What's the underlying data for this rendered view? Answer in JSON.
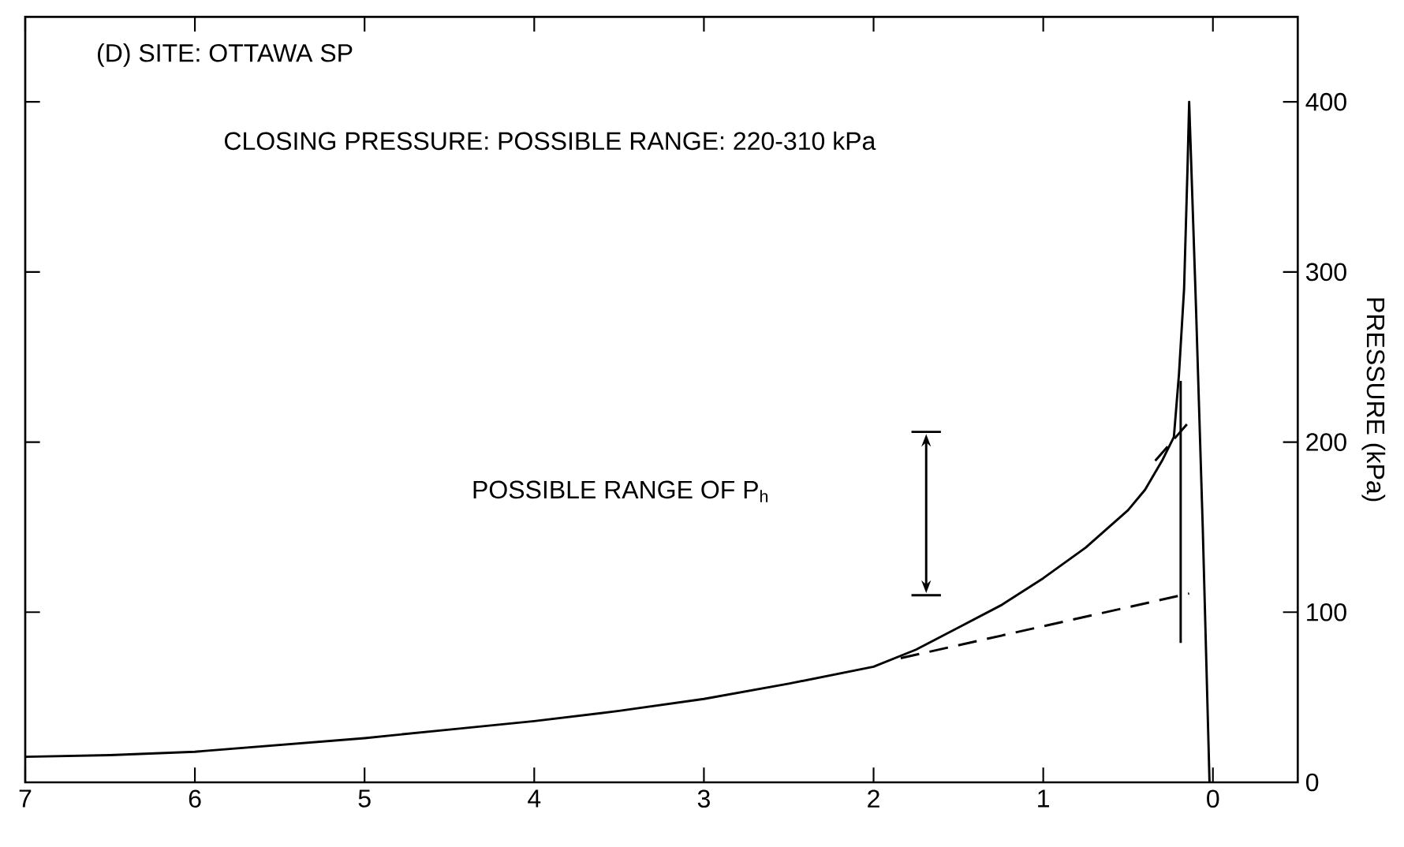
{
  "chart_data": {
    "type": "line",
    "title": "(D) SITE: OTTAWA SP",
    "subtitle": "CLOSING PRESSURE: POSSIBLE RANGE: 220-310 kPa",
    "ylabel": "PRESSURE (kPa)",
    "annotations": [
      "POSSIBLE RANGE OF P$_{h}$"
    ],
    "xlim": [
      7,
      -0.5
    ],
    "ylim": [
      0,
      450
    ],
    "xticks": [
      7,
      6,
      5,
      4,
      3,
      2,
      1,
      0
    ],
    "yticks": [
      0,
      100,
      200,
      300,
      400
    ],
    "tick_labels": "xy",
    "series": [
      {
        "color": "#000000",
        "line_style": "solid",
        "x": [
          7,
          6.5,
          6,
          5.5,
          5,
          4.5,
          4,
          3.5,
          3,
          2.5,
          2,
          1.75,
          1.5,
          1.25,
          1,
          0.75,
          0.5,
          0.4,
          0.3,
          0.23,
          0.2,
          0.17,
          0.15,
          0.14,
          0.1,
          0.06,
          0.02
        ],
        "values": [
          15,
          16,
          18,
          22,
          26,
          31,
          36,
          42,
          49,
          58,
          68,
          78,
          91,
          104,
          120,
          138,
          160,
          172,
          189,
          203,
          240,
          290,
          360,
          400,
          280,
          150,
          0
        ]
      },
      {
        "color": "#000000",
        "line_style": "dashed",
        "x": [
          1.84,
          0.14
        ],
        "values": [
          73,
          111
        ]
      },
      {
        "color": "#000000",
        "line_style": "dashed",
        "x": [
          0.34,
          0.14
        ],
        "values": [
          189,
          212
        ]
      },
      {
        "color": "#000000",
        "line_style": "solid",
        "x": [
          0.19,
          0.19
        ],
        "values": [
          82,
          236
        ]
      }
    ]
  }
}
